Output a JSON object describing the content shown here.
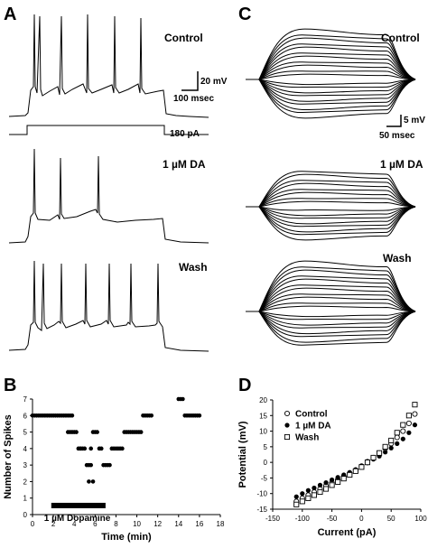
{
  "panel_a": {
    "letter": "A",
    "conditions": [
      "Control",
      "1 µM DA",
      "Wash"
    ],
    "voltage_scale": "20 mV",
    "time_scale": "100 msec",
    "current_step": "180 pA"
  },
  "panel_c": {
    "letter": "C",
    "conditions": [
      "Control",
      "1 µM DA",
      "Wash"
    ],
    "voltage_scale": "5 mV",
    "time_scale": "50 msec"
  },
  "chart_data": [
    {
      "panel": "B",
      "type": "scatter",
      "xlabel": "Time (min)",
      "ylabel": "Number of Spikes",
      "xlim": [
        0,
        18
      ],
      "ylim": [
        0,
        7
      ],
      "xticks": [
        "0",
        "2",
        "4",
        "6",
        "8",
        "10",
        "12",
        "14",
        "16",
        "18"
      ],
      "yticks": [
        "0",
        "1",
        "2",
        "3",
        "4",
        "5",
        "6",
        "7"
      ],
      "marker": "filled-circle",
      "series": [
        {
          "x": [
            0.0,
            0.2,
            0.4,
            0.6,
            0.8,
            1.0,
            1.2,
            1.4,
            1.6,
            1.8,
            2.0,
            2.2,
            2.4,
            2.6,
            2.8,
            3.0,
            3.2,
            3.4,
            3.6,
            3.8,
            3.4,
            3.6,
            3.8,
            4.0,
            4.2,
            4.4,
            4.6,
            4.6,
            4.8,
            5.0,
            5.2,
            5.4,
            5.6,
            5.8,
            5.4,
            5.6,
            5.8,
            6.0,
            6.2,
            6.4,
            6.6,
            6.8,
            7.0,
            7.2,
            7.4,
            7.6,
            7.8,
            8.0,
            8.2,
            8.4,
            8.6,
            8.8,
            9.0,
            9.2,
            9.4,
            9.6,
            9.8,
            10.0,
            10.2,
            10.4,
            10.6,
            10.8,
            11.0,
            11.2,
            11.4,
            14.0,
            14.2,
            14.4,
            14.6,
            14.8,
            15.0,
            15.2,
            15.4,
            15.6,
            15.8,
            16.0
          ],
          "y": [
            6,
            6,
            6,
            6,
            6,
            6,
            6,
            6,
            6,
            6,
            6,
            6,
            6,
            6,
            6,
            6,
            6,
            6,
            6,
            6,
            5,
            5,
            5,
            5,
            5,
            4,
            4,
            4,
            4,
            4,
            3,
            3,
            3,
            2,
            2,
            4,
            5,
            5,
            5,
            4,
            4,
            3,
            3,
            3,
            3,
            4,
            4,
            4,
            4,
            4,
            4,
            5,
            5,
            5,
            5,
            5,
            5,
            5,
            5,
            5,
            6,
            6,
            6,
            6,
            6,
            7,
            7,
            7,
            6,
            6,
            6,
            6,
            6,
            6,
            6,
            6
          ],
          "_note": "values read from plot"
        }
      ],
      "annotation": {
        "label": "1 µM Dopamine",
        "start": 1.8,
        "end": 7.0
      }
    },
    {
      "panel": "D",
      "type": "scatter",
      "xlabel": "Current (pA)",
      "ylabel": "Potential (mV)",
      "xlim": [
        -150,
        100
      ],
      "ylim": [
        -15,
        20
      ],
      "xticks": [
        "-150",
        "-100",
        "-50",
        "0",
        "50",
        "100"
      ],
      "yticks": [
        "-15",
        "-10",
        "-5",
        "0",
        "5",
        "10",
        "15",
        "20"
      ],
      "legend_position": "top-left",
      "series": [
        {
          "name": "Control",
          "marker": "open-circle",
          "x": [
            -110,
            -100,
            -90,
            -80,
            -70,
            -60,
            -50,
            -40,
            -30,
            -20,
            -10,
            0,
            10,
            20,
            30,
            40,
            50,
            60,
            70,
            80,
            90
          ],
          "y": [
            -12.5,
            -11.5,
            -10.5,
            -9.5,
            -8.5,
            -7.5,
            -6.5,
            -5.5,
            -4.5,
            -3.5,
            -2.5,
            -1.2,
            0.2,
            1.5,
            3,
            4.5,
            6,
            8,
            10,
            12.5,
            15.5
          ]
        },
        {
          "name": "1 µM DA",
          "marker": "filled-circle",
          "x": [
            -110,
            -100,
            -90,
            -80,
            -70,
            -60,
            -50,
            -40,
            -30,
            -20,
            -10,
            0,
            10,
            20,
            30,
            40,
            50,
            60,
            70,
            80,
            90
          ],
          "y": [
            -11,
            -10,
            -9,
            -8.2,
            -7.3,
            -6.5,
            -5.6,
            -4.8,
            -4,
            -3.2,
            -2.3,
            -1.2,
            -0.2,
            1,
            2,
            3.3,
            4.6,
            6,
            7.5,
            9.5,
            12
          ]
        },
        {
          "name": "Wash",
          "marker": "open-square",
          "x": [
            -110,
            -100,
            -90,
            -80,
            -70,
            -60,
            -50,
            -40,
            -30,
            -20,
            -10,
            0,
            10,
            20,
            30,
            40,
            50,
            60,
            70,
            80,
            90
          ],
          "y": [
            -13.5,
            -12.5,
            -11.5,
            -10.5,
            -9.5,
            -8.5,
            -7.3,
            -6.3,
            -5.2,
            -4,
            -2.8,
            -1.5,
            0,
            1.5,
            3,
            5,
            7,
            9.5,
            12,
            15,
            18.5
          ]
        }
      ]
    }
  ]
}
